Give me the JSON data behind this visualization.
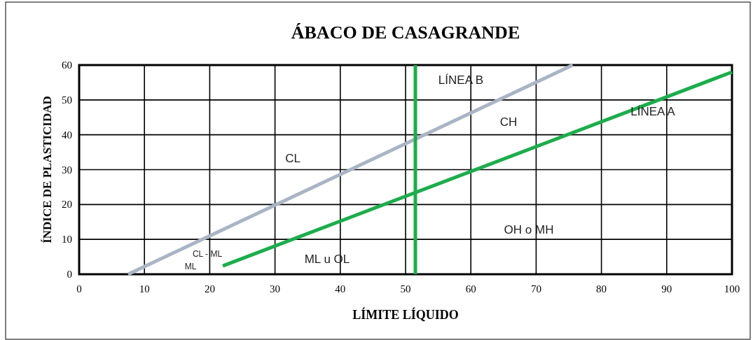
{
  "chart_data": {
    "type": "line",
    "title": "ÁBACO DE CASAGRANDE",
    "xlabel": "LÍMITE LÍQUIDO",
    "ylabel": "ÍNDICE DE PLASTICIDAD",
    "xlim": [
      0,
      100
    ],
    "ylim": [
      0,
      60
    ],
    "xticks": [
      0,
      10,
      20,
      30,
      40,
      50,
      60,
      70,
      80,
      90,
      100
    ],
    "yticks": [
      0,
      10,
      20,
      30,
      40,
      50,
      60
    ],
    "grid": true,
    "marker": "none",
    "line_style": "solid",
    "series": [
      {
        "color": "#a9b5c5",
        "x": [
          7.5,
          75.6
        ],
        "values": [
          0,
          60
        ]
      },
      {
        "name": "LÍNEA A",
        "color": "#1cad4b",
        "x": [
          22,
          100
        ],
        "values": [
          2.4,
          58
        ]
      },
      {
        "name": "LÍNEA B",
        "color": "#1cad4b",
        "x": [
          51.5,
          51.5
        ],
        "values": [
          0,
          60
        ]
      }
    ],
    "annotations": [
      "CL",
      "CH",
      "OH o MH",
      "ML u OL",
      "CL - ML",
      "ML"
    ]
  }
}
